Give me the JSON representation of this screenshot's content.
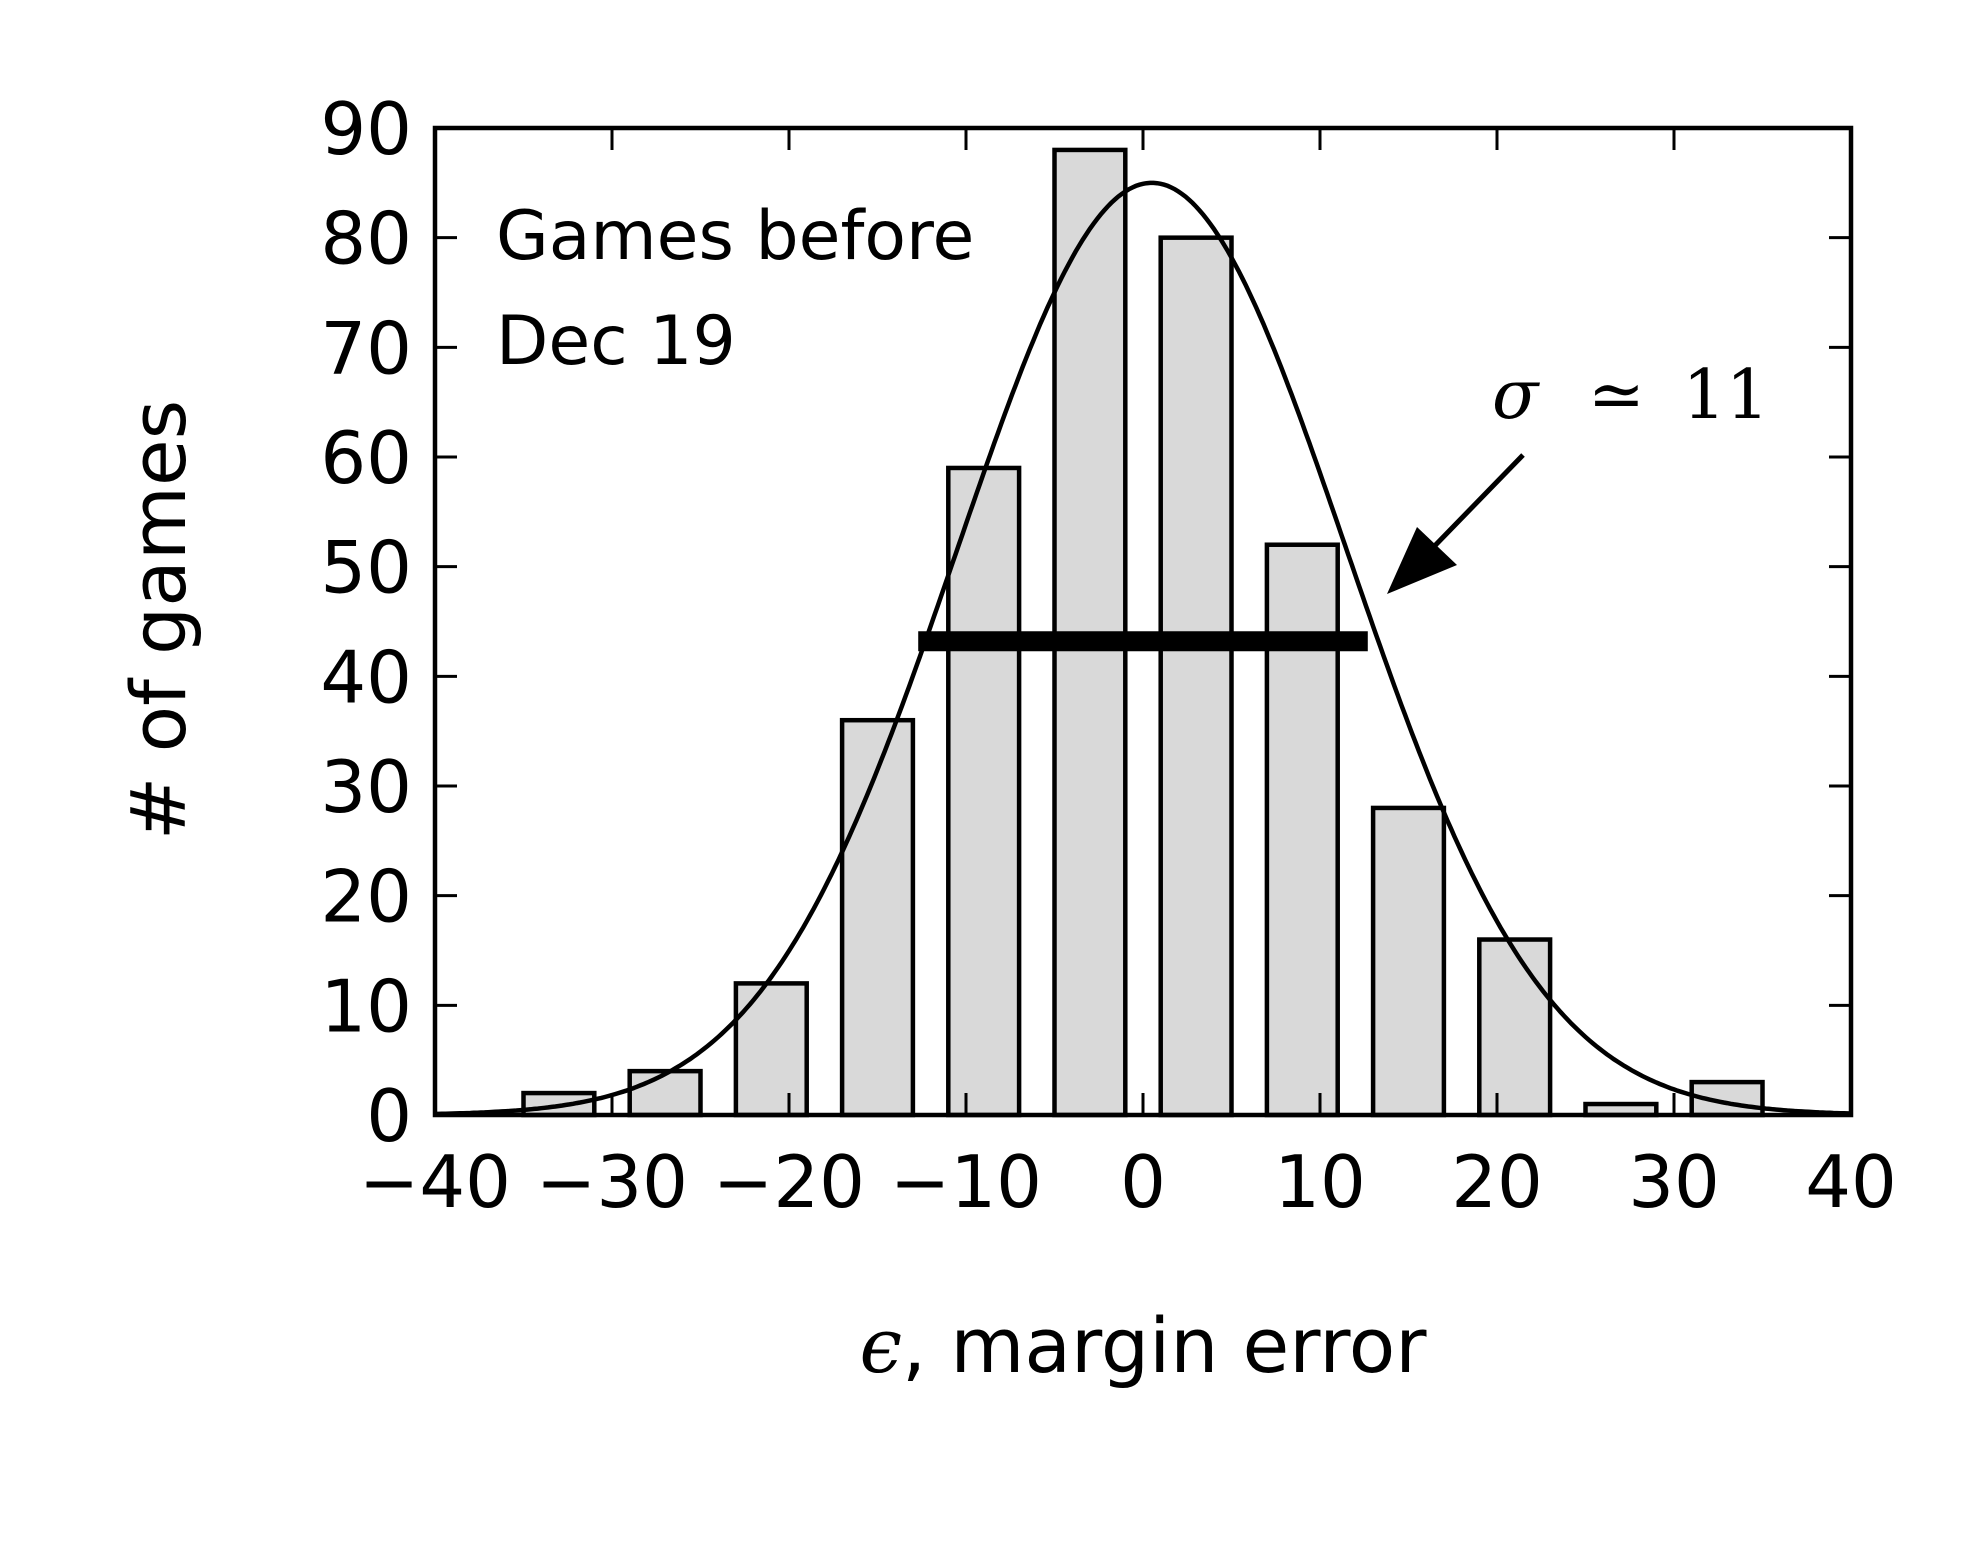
{
  "chart_data": {
    "type": "bar",
    "xlabel_symbol": "ϵ",
    "xlabel_text": ", margin error",
    "ylabel": "# of games",
    "xlim": [
      -40,
      40
    ],
    "ylim": [
      0,
      90
    ],
    "xticks": [
      -40,
      -30,
      -20,
      -10,
      0,
      10,
      20,
      30,
      40
    ],
    "xtick_labels": [
      "−40",
      "−30",
      "−20",
      "−10",
      "0",
      "10",
      "20",
      "30",
      "40"
    ],
    "yticks": [
      0,
      10,
      20,
      30,
      40,
      50,
      60,
      70,
      80,
      90
    ],
    "ytick_labels": [
      "0",
      "10",
      "20",
      "30",
      "40",
      "50",
      "60",
      "70",
      "80",
      "90"
    ],
    "bin_width": 6,
    "bar_width": 4,
    "bin_centers": [
      -33,
      -27,
      -21,
      -15,
      -9,
      -3,
      3,
      9,
      15,
      21,
      27,
      33
    ],
    "values": [
      2,
      4,
      12,
      36,
      59,
      88,
      80,
      52,
      28,
      16,
      1,
      3
    ],
    "bar_color": "#d9d9d9",
    "edge_color": "#000000",
    "fit": {
      "type": "gaussian",
      "mean": 0.5,
      "sigma": 11,
      "peak": 85
    },
    "width_bar": {
      "x_start": -12.7,
      "x_end": 12.7,
      "y": 43.2
    },
    "annotations": {
      "panel_line1": "Games before",
      "panel_line2": "Dec 19",
      "sigma_symbol": "σ",
      "sigma_relation": "≃",
      "sigma_value": "11"
    },
    "grid": false
  }
}
